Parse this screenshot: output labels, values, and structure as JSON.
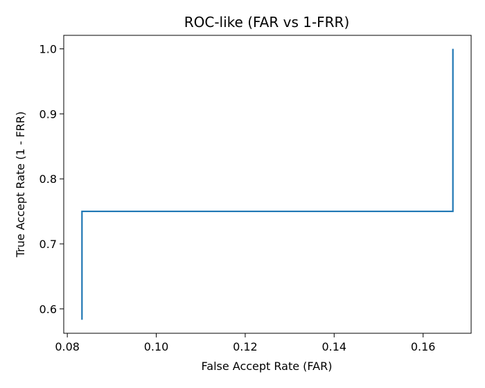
{
  "chart_data": {
    "type": "line",
    "title": "ROC-like (FAR vs 1-FRR)",
    "xlabel": "False Accept Rate (FAR)",
    "ylabel": "True Accept Rate (1 - FRR)",
    "xlim": [
      0.0792,
      0.1708
    ],
    "ylim": [
      0.5625,
      1.0208
    ],
    "xticks": [
      0.08,
      0.1,
      0.12,
      0.14,
      0.16
    ],
    "xtick_labels": [
      "0.08",
      "0.10",
      "0.12",
      "0.14",
      "0.16"
    ],
    "yticks": [
      0.6,
      0.7,
      0.8,
      0.9,
      1.0
    ],
    "ytick_labels": [
      "0.6",
      "0.7",
      "0.8",
      "0.9",
      "1.0"
    ],
    "grid": false,
    "series": [
      {
        "color": "#1f77b4",
        "x": [
          0.0833,
          0.0833,
          0.1667,
          0.1667
        ],
        "y": [
          0.5833,
          0.75,
          0.75,
          1.0
        ]
      }
    ]
  }
}
